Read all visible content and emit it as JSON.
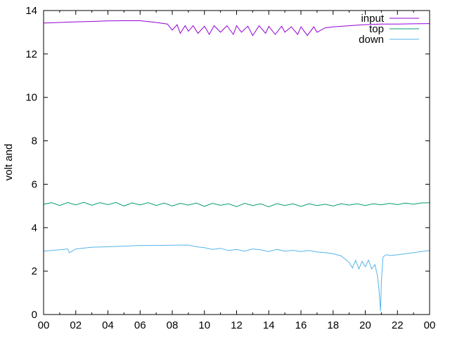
{
  "chart_data": {
    "type": "line",
    "ylabel": "volt and",
    "xlim": [
      0,
      24
    ],
    "ylim": [
      0,
      14
    ],
    "x_tick_labels": [
      "00",
      "02",
      "04",
      "06",
      "08",
      "10",
      "12",
      "14",
      "16",
      "18",
      "20",
      "22",
      "00"
    ],
    "y_tick_labels": [
      "0",
      "2",
      "4",
      "6",
      "8",
      "10",
      "12",
      "14"
    ],
    "grid": false,
    "legend_position": "top-right",
    "series": [
      {
        "name": "input",
        "color": "#9400d3",
        "x": [
          0,
          1,
          2,
          3,
          4,
          5,
          6,
          7,
          7.7,
          8,
          8.3,
          8.5,
          8.8,
          9,
          9.3,
          9.6,
          10,
          10.3,
          10.6,
          11,
          11.4,
          11.8,
          12,
          12.3,
          12.7,
          13,
          13.4,
          13.8,
          14,
          14.4,
          14.8,
          15,
          15.4,
          15.8,
          16,
          16.4,
          16.8,
          17,
          17.5,
          18,
          19,
          20,
          21,
          22,
          23,
          24
        ],
        "values": [
          13.42,
          13.45,
          13.48,
          13.5,
          13.52,
          13.53,
          13.53,
          13.45,
          13.38,
          13.1,
          13.35,
          12.95,
          13.3,
          13.05,
          13.3,
          12.95,
          13.28,
          12.9,
          13.3,
          13.0,
          13.3,
          12.9,
          13.3,
          13.0,
          13.28,
          12.85,
          13.3,
          12.95,
          13.27,
          12.9,
          13.28,
          13.0,
          13.25,
          12.9,
          13.25,
          12.85,
          13.25,
          13.0,
          13.2,
          13.25,
          13.3,
          13.35,
          13.38,
          13.38,
          13.39,
          13.4
        ]
      },
      {
        "name": "top",
        "color": "#009e73",
        "x": [
          0,
          0.5,
          1,
          1.5,
          2,
          2.5,
          3,
          3.5,
          4,
          4.5,
          5,
          5.5,
          6,
          6.5,
          7,
          7.5,
          8,
          8.5,
          9,
          9.5,
          10,
          10.5,
          11,
          11.5,
          12,
          12.5,
          13,
          13.5,
          14,
          14.5,
          15,
          15.5,
          16,
          16.5,
          17,
          17.5,
          18,
          18.5,
          19,
          19.5,
          20,
          20.5,
          21,
          21.5,
          22,
          22.5,
          23,
          23.5,
          24
        ],
        "values": [
          5.08,
          5.15,
          5.02,
          5.16,
          5.05,
          5.17,
          5.03,
          5.15,
          5.06,
          5.16,
          5.0,
          5.14,
          5.05,
          5.15,
          5.02,
          5.13,
          5.0,
          5.12,
          5.04,
          5.13,
          4.98,
          5.12,
          5.03,
          5.1,
          4.97,
          5.12,
          5.02,
          5.1,
          4.96,
          5.11,
          5.02,
          5.1,
          4.98,
          5.1,
          5.02,
          5.08,
          5.0,
          5.1,
          5.04,
          5.1,
          5.02,
          5.1,
          5.05,
          5.12,
          5.06,
          5.13,
          5.08,
          5.14,
          5.15
        ]
      },
      {
        "name": "down",
        "color": "#56b4e9",
        "x": [
          0,
          1,
          1.5,
          1.6,
          2,
          3,
          4,
          5,
          6,
          7,
          8,
          9,
          9.5,
          10,
          10.5,
          11,
          11.5,
          12,
          12.5,
          13,
          13.5,
          14,
          14.5,
          15,
          15.5,
          16,
          16.5,
          17,
          17.5,
          18,
          18.5,
          19,
          19.2,
          19.4,
          19.6,
          19.8,
          20,
          20.2,
          20.4,
          20.6,
          20.75,
          20.85,
          20.95,
          21.0,
          21.1,
          21.3,
          21.6,
          22,
          22.5,
          23,
          23.5,
          24
        ],
        "values": [
          2.92,
          2.98,
          3.02,
          2.85,
          3.02,
          3.1,
          3.12,
          3.15,
          3.18,
          3.18,
          3.19,
          3.2,
          3.12,
          3.08,
          3.0,
          3.05,
          2.95,
          3.0,
          2.92,
          3.02,
          2.98,
          2.9,
          3.0,
          2.92,
          2.96,
          2.9,
          2.95,
          2.88,
          2.85,
          2.8,
          2.7,
          2.4,
          2.15,
          2.5,
          2.1,
          2.45,
          2.2,
          2.5,
          2.1,
          2.3,
          1.8,
          1.2,
          0.15,
          1.5,
          2.65,
          2.75,
          2.72,
          2.75,
          2.8,
          2.85,
          2.9,
          2.95
        ]
      }
    ]
  }
}
